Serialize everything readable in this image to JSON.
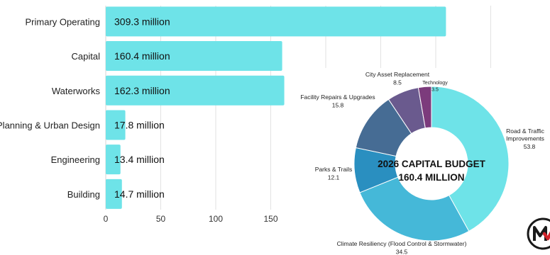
{
  "chart_data": [
    {
      "type": "bar",
      "orientation": "horizontal",
      "categories": [
        "Primary Operating",
        "Capital",
        "Waterworks",
        "Planning & Urban Design",
        "Engineering",
        "Building"
      ],
      "values": [
        309.3,
        160.4,
        162.3,
        17.8,
        13.4,
        14.7
      ],
      "data_labels": [
        "309.3 million",
        "160.4 million",
        "162.3 million",
        "17.8 million",
        "13.4 million",
        "14.7 million"
      ],
      "x_ticks": [
        0,
        50,
        100,
        150
      ],
      "xlim": [
        0,
        350
      ],
      "grid": true,
      "bar_color": "#6ee3e8"
    },
    {
      "type": "pie",
      "donut": true,
      "center_title": "2026 CAPITAL BUDGET",
      "center_subtitle": "160.4 MILLION",
      "slices": [
        {
          "label": "Road & Traffic Improvements",
          "label_lines": [
            "Road & Traffic",
            "Improvements"
          ],
          "value": 53.8,
          "value_text": "53.8",
          "color": "#6ee3e8"
        },
        {
          "label": "Climate Resiliency (Flood Control & Stormwater)",
          "label_lines": [
            "Climate Resiliency (Flood Control & Stormwater)"
          ],
          "value": 34.5,
          "value_text": "34.5",
          "color": "#45b8d8"
        },
        {
          "label": "Parks & Trails",
          "label_lines": [
            "Parks & Trails"
          ],
          "value": 12.1,
          "value_text": "12.1",
          "color": "#2a8fc0"
        },
        {
          "label": "Facility Repairs & Upgrades",
          "label_lines": [
            "Facility Repairs & Upgrades"
          ],
          "value": 15.8,
          "value_text": "15.8",
          "color": "#466c94"
        },
        {
          "label": "City Asset Replacement",
          "label_lines": [
            "City Asset Replacement"
          ],
          "value": 8.5,
          "value_text": "8.5",
          "color": "#6a5a8e"
        },
        {
          "label": "Technology",
          "label_lines": [
            "Technology"
          ],
          "value": 3.5,
          "value_text": "3.5",
          "color": "#7c3b7c"
        }
      ]
    }
  ],
  "logo": {
    "letter": "M",
    "ring_color": "#1a1a1a",
    "check_color": "#d0232a"
  }
}
